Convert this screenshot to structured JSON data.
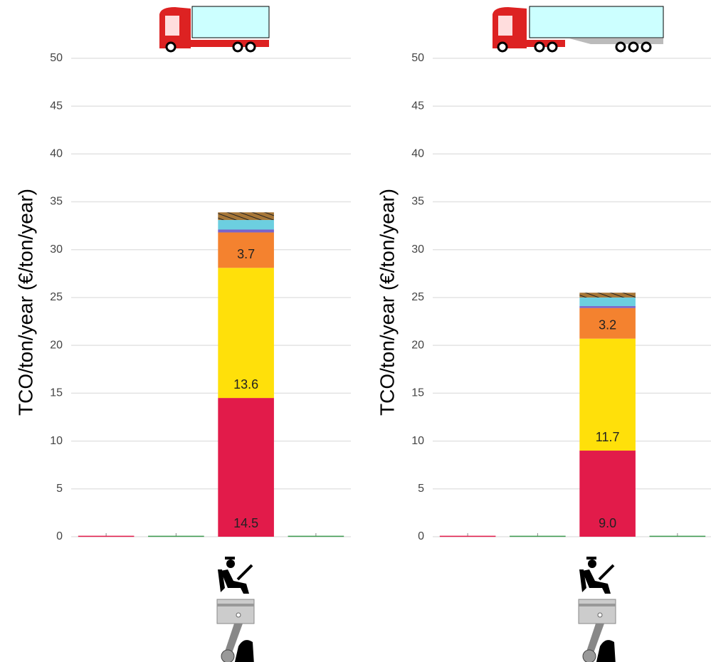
{
  "chart_data": [
    {
      "type": "stacked-bar",
      "ylabel": "TCO/ton/year (€/ton/year)",
      "categories": [
        null,
        null,
        null,
        null
      ],
      "ylim": [
        0,
        52
      ],
      "yticks": [
        0,
        5,
        10,
        15,
        20,
        25,
        30,
        35,
        40,
        45,
        50
      ],
      "grid": true,
      "series": [
        {
          "color": "#e21b4a",
          "values": [
            0.1,
            null,
            14.5,
            null
          ],
          "value_labels": [
            null,
            null,
            "14.5",
            null
          ]
        },
        {
          "color": "#ffe00a",
          "values": [
            null,
            null,
            13.6,
            null
          ],
          "value_labels": [
            null,
            null,
            "13.6",
            null
          ]
        },
        {
          "color": "#f4822f",
          "values": [
            null,
            null,
            3.7,
            null
          ],
          "value_labels": [
            null,
            null,
            "3.7",
            null
          ]
        },
        {
          "color": "#7a63c9",
          "values": [
            null,
            null,
            0.3,
            null
          ]
        },
        {
          "color": "#6ccfe0",
          "values": [
            null,
            null,
            1.0,
            null
          ]
        },
        {
          "color": "#a67637",
          "hatch": true,
          "values": [
            null,
            null,
            0.8,
            null
          ]
        },
        {
          "color": "#3c9a4e",
          "values": [
            null,
            0.1,
            null,
            0.1
          ]
        }
      ]
    },
    {
      "type": "stacked-bar",
      "ylabel": "TCO/ton/year (€/ton/year)",
      "categories": [
        null,
        null,
        null,
        null
      ],
      "ylim": [
        0,
        52
      ],
      "yticks": [
        0,
        5,
        10,
        15,
        20,
        25,
        30,
        35,
        40,
        45,
        50
      ],
      "grid": true,
      "series": [
        {
          "color": "#e21b4a",
          "values": [
            0.1,
            null,
            9.0,
            null
          ],
          "value_labels": [
            null,
            null,
            "9.0",
            null
          ]
        },
        {
          "color": "#ffe00a",
          "values": [
            null,
            null,
            11.7,
            null
          ],
          "value_labels": [
            null,
            null,
            "11.7",
            null
          ]
        },
        {
          "color": "#f4822f",
          "values": [
            null,
            null,
            3.2,
            null
          ],
          "value_labels": [
            null,
            null,
            "3.2",
            null
          ]
        },
        {
          "color": "#7a63c9",
          "values": [
            null,
            null,
            0.2,
            null
          ]
        },
        {
          "color": "#6ccfe0",
          "values": [
            null,
            null,
            0.9,
            null
          ]
        },
        {
          "color": "#a67637",
          "hatch": true,
          "values": [
            null,
            null,
            0.5,
            null
          ]
        },
        {
          "color": "#3c9a4e",
          "values": [
            null,
            0.1,
            null,
            0.1
          ]
        }
      ]
    }
  ]
}
